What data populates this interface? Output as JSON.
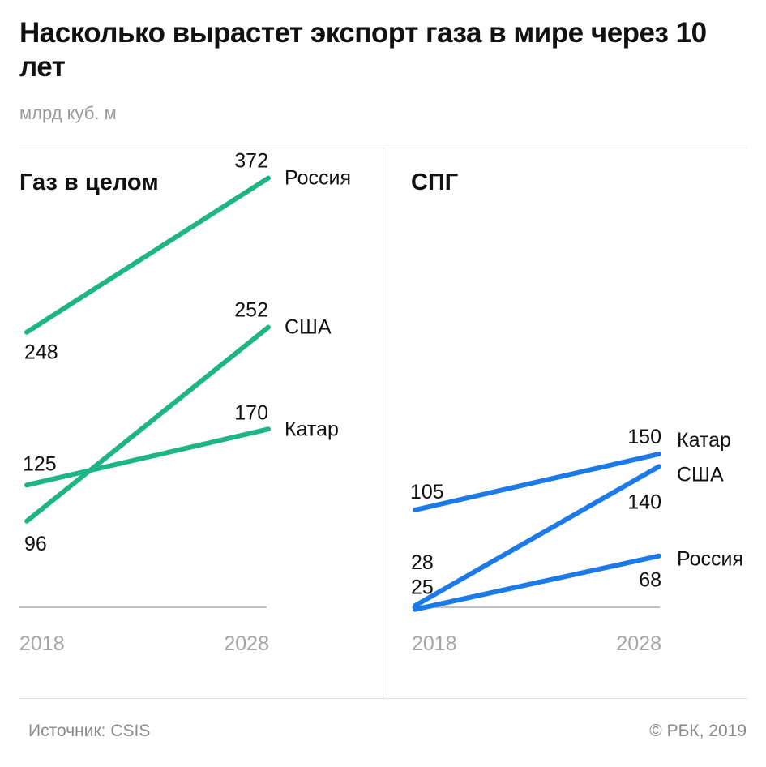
{
  "title": "Насколько вырастет экспорт газа в мире через 10 лет",
  "subtitle": "млрд куб. м",
  "colors": {
    "gas": "#1db585",
    "lng": "#1c7ae8",
    "axis": "#aaaaaa",
    "tick": "#a5a5a5"
  },
  "chart_data": [
    {
      "type": "line",
      "title": "Газ в целом",
      "x": [
        "2018",
        "2028"
      ],
      "ylim": [
        0,
        450
      ],
      "series": [
        {
          "name": "Россия",
          "values": [
            248,
            372
          ]
        },
        {
          "name": "США",
          "values": [
            96,
            252
          ]
        },
        {
          "name": "Катар",
          "values": [
            125,
            170
          ]
        }
      ]
    },
    {
      "type": "line",
      "title": "СПГ",
      "x": [
        "2018",
        "2028"
      ],
      "ylim": [
        0,
        450
      ],
      "series": [
        {
          "name": "Катар",
          "values": [
            105,
            150
          ]
        },
        {
          "name": "США",
          "values": [
            28,
            140
          ]
        },
        {
          "name": "Россия",
          "values": [
            25,
            68
          ]
        }
      ]
    }
  ],
  "footer": {
    "source": "Источник: CSIS",
    "copyright": "© РБК, 2019"
  }
}
